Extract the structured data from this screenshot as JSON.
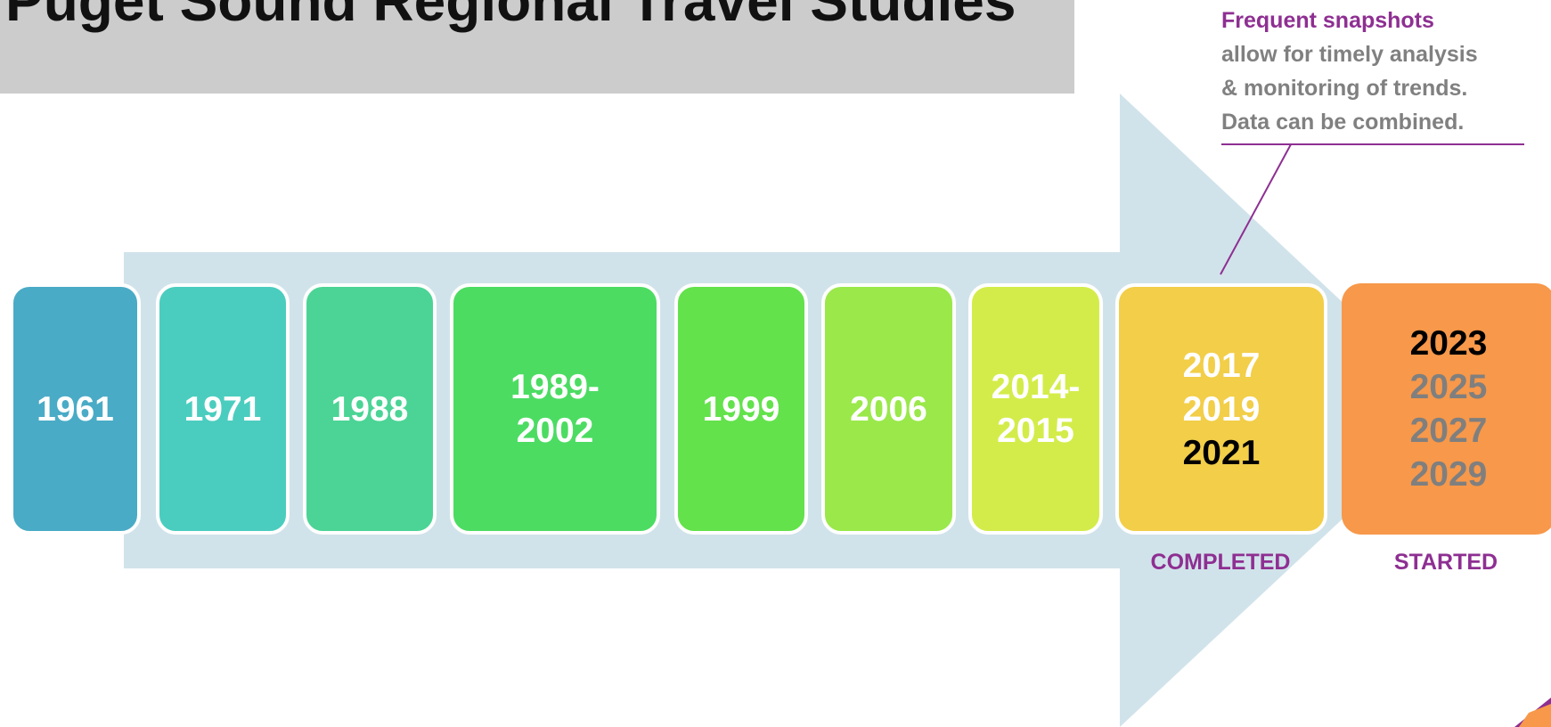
{
  "header": {
    "title": "Puget Sound Regional Travel Studies"
  },
  "callout": {
    "heading": "Frequent snapshots",
    "lines": [
      "allow for timely analysis",
      "& monitoring of trends.",
      "Data can be combined."
    ]
  },
  "boxes": [
    {
      "lines": [
        "1961"
      ],
      "color": "#4aabc6"
    },
    {
      "lines": [
        "1971"
      ],
      "color": "#4acdbf"
    },
    {
      "lines": [
        "1988"
      ],
      "color": "#4bd495"
    },
    {
      "lines": [
        "1989-",
        "2002"
      ],
      "color": "#4cdc62"
    },
    {
      "lines": [
        "1999"
      ],
      "color": "#63e24b"
    },
    {
      "lines": [
        "2006"
      ],
      "color": "#9ae84a"
    },
    {
      "lines": [
        "2014-",
        "2015"
      ],
      "color": "#d4ec4a"
    },
    {
      "lines": [
        "2017",
        "2019",
        "2021"
      ],
      "color": "#f2ce49"
    },
    {
      "lines": [
        "2023",
        "2025",
        "2027",
        "2029"
      ],
      "color": "#f7984a"
    }
  ],
  "labels": {
    "completed": "COMPLETED",
    "started": "STARTED"
  }
}
